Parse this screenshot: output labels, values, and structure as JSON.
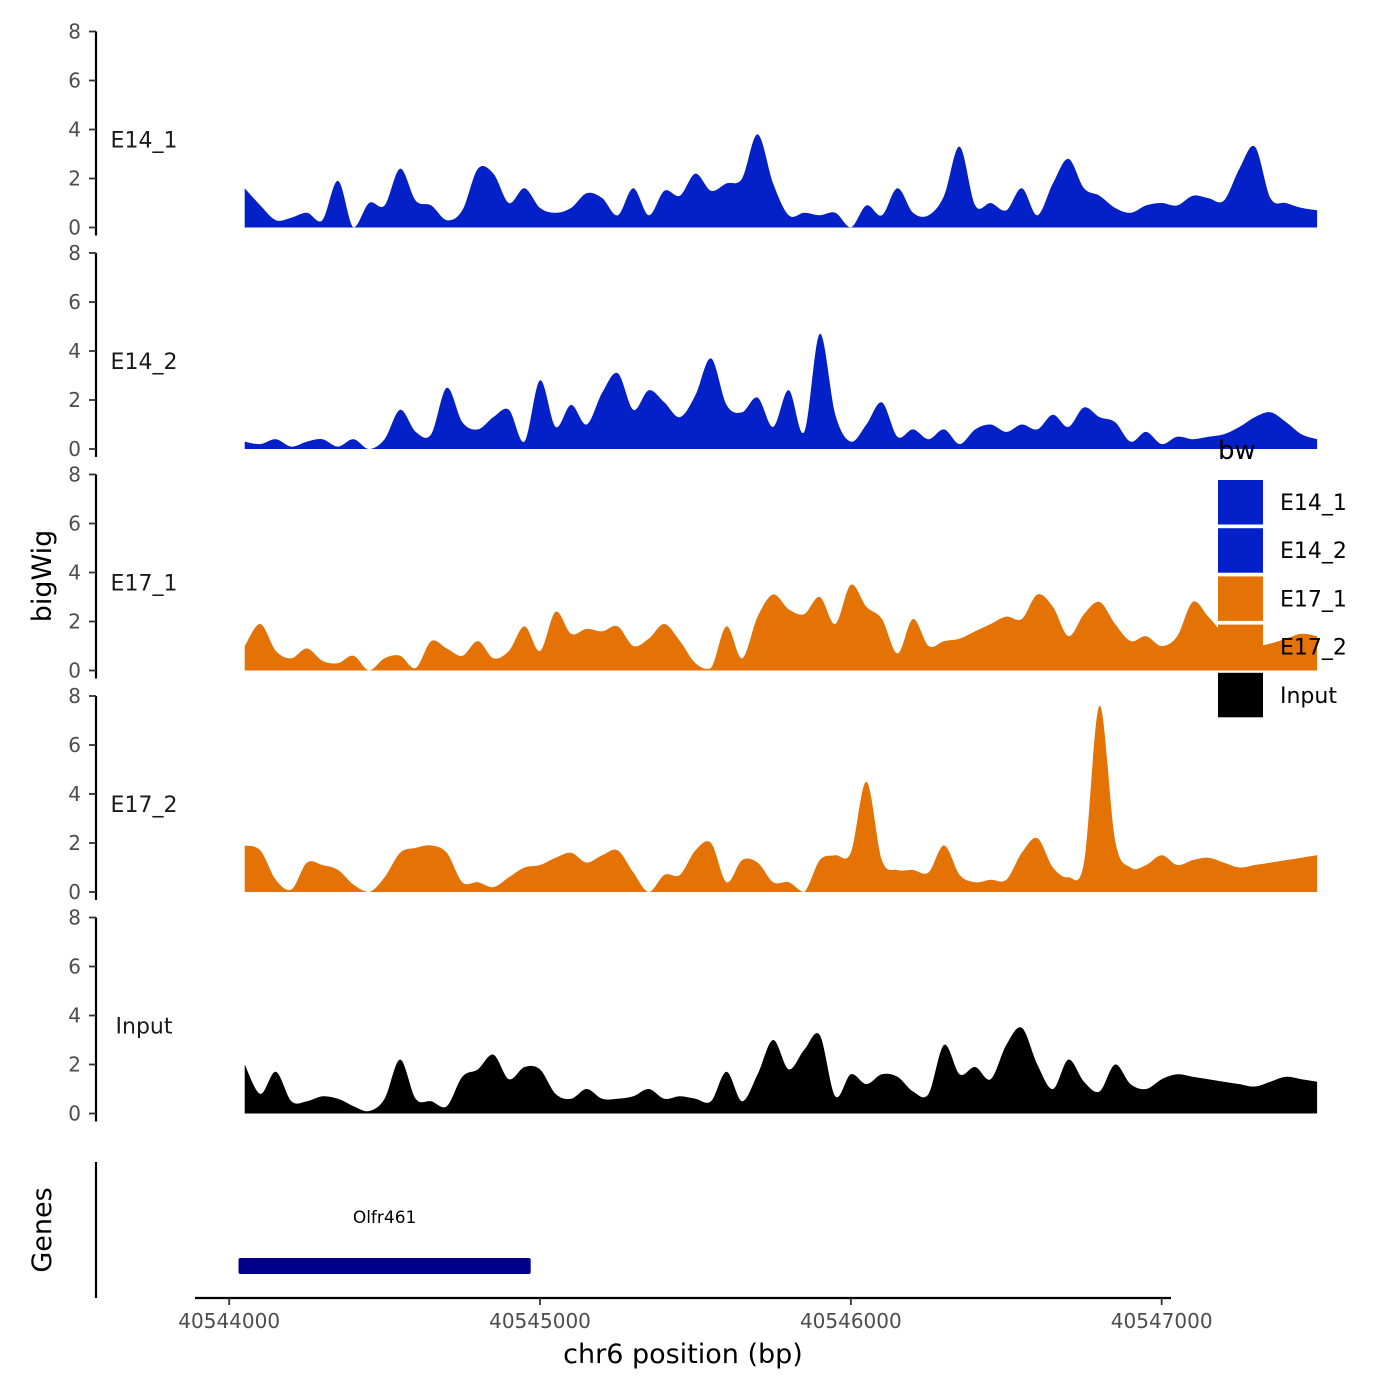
{
  "chart_data": {
    "type": "area",
    "title": "",
    "ylabel": "bigWig",
    "xlabel": "chr6 position (bp)",
    "genes_label": "Genes",
    "ylim": [
      0,
      8
    ],
    "y_ticks": [
      "0",
      "2",
      "4",
      "6",
      "8"
    ],
    "x_range": [
      40543890,
      40547030
    ],
    "x_ticks": [
      {
        "value": 40544000,
        "label": "40544000"
      },
      {
        "value": 40545000,
        "label": "40545000"
      },
      {
        "value": 40546000,
        "label": "40546000"
      },
      {
        "value": 40547000,
        "label": "40547000"
      }
    ],
    "legend": {
      "title": "bw",
      "placement": "right",
      "entries": [
        {
          "label": "E14_1",
          "color": "#0420C8"
        },
        {
          "label": "E14_2",
          "color": "#0420C8"
        },
        {
          "label": "E17_1",
          "color": "#E57205"
        },
        {
          "label": "E17_2",
          "color": "#E57205"
        },
        {
          "label": "Input",
          "color": "#000000"
        }
      ]
    },
    "x_start": 40544050,
    "x_step": 50,
    "series": [
      {
        "name": "E14_1",
        "color": "#0420C8",
        "values": [
          1.6,
          0.9,
          0.3,
          0.4,
          0.6,
          0.3,
          1.9,
          0.0,
          1.0,
          0.9,
          2.4,
          1.1,
          0.9,
          0.3,
          0.7,
          2.4,
          2.2,
          1.0,
          1.6,
          0.8,
          0.6,
          0.8,
          1.4,
          1.2,
          0.5,
          1.6,
          0.5,
          1.5,
          1.3,
          2.2,
          1.5,
          1.8,
          2.0,
          3.8,
          1.8,
          0.5,
          0.6,
          0.5,
          0.6,
          0.0,
          0.9,
          0.5,
          1.6,
          0.6,
          0.5,
          1.3,
          3.3,
          0.9,
          1.0,
          0.7,
          1.6,
          0.5,
          1.8,
          2.8,
          1.6,
          1.3,
          0.8,
          0.6,
          0.9,
          1.0,
          0.9,
          1.3,
          1.2,
          1.1,
          2.4,
          3.3,
          1.2,
          1.0,
          0.8,
          0.7
        ]
      },
      {
        "name": "E14_2",
        "color": "#0420C8",
        "values": [
          0.3,
          0.2,
          0.4,
          0.1,
          0.3,
          0.4,
          0.1,
          0.4,
          0.0,
          0.4,
          1.6,
          0.7,
          0.6,
          2.5,
          1.1,
          0.8,
          1.3,
          1.6,
          0.3,
          2.8,
          0.9,
          1.8,
          1.0,
          2.3,
          3.1,
          1.6,
          2.4,
          1.9,
          1.3,
          2.2,
          3.7,
          1.8,
          1.5,
          2.1,
          0.9,
          2.4,
          0.7,
          4.7,
          1.4,
          0.3,
          1.0,
          1.9,
          0.5,
          0.8,
          0.4,
          0.8,
          0.2,
          0.8,
          1.0,
          0.7,
          1.0,
          0.8,
          1.4,
          0.9,
          1.7,
          1.3,
          1.1,
          0.3,
          0.7,
          0.2,
          0.5,
          0.4,
          0.5,
          0.6,
          0.9,
          1.3,
          1.5,
          1.1,
          0.6,
          0.4
        ]
      },
      {
        "name": "E17_1",
        "color": "#E57205",
        "values": [
          1.0,
          1.9,
          0.8,
          0.5,
          0.9,
          0.4,
          0.3,
          0.6,
          0.0,
          0.5,
          0.6,
          0.1,
          1.2,
          0.9,
          0.6,
          1.2,
          0.5,
          0.8,
          1.8,
          0.8,
          2.4,
          1.5,
          1.7,
          1.6,
          1.8,
          1.0,
          1.3,
          1.9,
          1.2,
          0.3,
          0.1,
          1.8,
          0.5,
          2.2,
          3.1,
          2.5,
          2.3,
          3.0,
          1.9,
          3.5,
          2.6,
          2.1,
          0.7,
          2.1,
          1.0,
          1.2,
          1.3,
          1.6,
          1.9,
          2.2,
          2.1,
          3.1,
          2.6,
          1.4,
          2.3,
          2.8,
          1.9,
          1.2,
          1.4,
          1.0,
          1.4,
          2.8,
          2.2,
          1.5,
          1.2,
          1.0,
          1.1,
          1.3,
          1.5,
          1.4
        ]
      },
      {
        "name": "E17_2",
        "color": "#E57205",
        "values": [
          1.9,
          1.7,
          0.5,
          0.1,
          1.2,
          1.1,
          0.9,
          0.3,
          0.0,
          0.6,
          1.6,
          1.8,
          1.9,
          1.6,
          0.4,
          0.4,
          0.2,
          0.6,
          1.0,
          1.1,
          1.4,
          1.6,
          1.2,
          1.5,
          1.7,
          0.8,
          0.0,
          0.7,
          0.7,
          1.7,
          2.0,
          0.4,
          1.3,
          1.2,
          0.4,
          0.4,
          0.0,
          1.3,
          1.5,
          1.6,
          4.5,
          1.3,
          0.9,
          0.9,
          0.8,
          1.9,
          0.7,
          0.4,
          0.5,
          0.5,
          1.6,
          2.2,
          1.0,
          0.6,
          1.2,
          7.6,
          2.1,
          1.0,
          1.1,
          1.5,
          1.1,
          1.3,
          1.4,
          1.2,
          1.0,
          1.1,
          1.2,
          1.3,
          1.4,
          1.5
        ]
      },
      {
        "name": "Input",
        "color": "#000000",
        "values": [
          2.0,
          0.8,
          1.7,
          0.5,
          0.5,
          0.7,
          0.6,
          0.3,
          0.1,
          0.6,
          2.2,
          0.6,
          0.5,
          0.3,
          1.5,
          1.8,
          2.4,
          1.4,
          1.9,
          1.8,
          0.8,
          0.6,
          1.0,
          0.6,
          0.6,
          0.7,
          1.0,
          0.6,
          0.7,
          0.6,
          0.5,
          1.7,
          0.5,
          1.6,
          3.0,
          1.8,
          2.6,
          3.2,
          0.7,
          1.6,
          1.2,
          1.6,
          1.5,
          0.9,
          0.8,
          2.8,
          1.6,
          1.9,
          1.4,
          2.8,
          3.5,
          2.0,
          1.0,
          2.2,
          1.3,
          0.9,
          2.0,
          1.2,
          1.0,
          1.4,
          1.6,
          1.5,
          1.4,
          1.3,
          1.2,
          1.1,
          1.3,
          1.5,
          1.4,
          1.3
        ]
      }
    ],
    "genes": [
      {
        "name": "Olfr461",
        "start": 40544030,
        "end": 40544970,
        "color": "#00008B"
      }
    ]
  }
}
